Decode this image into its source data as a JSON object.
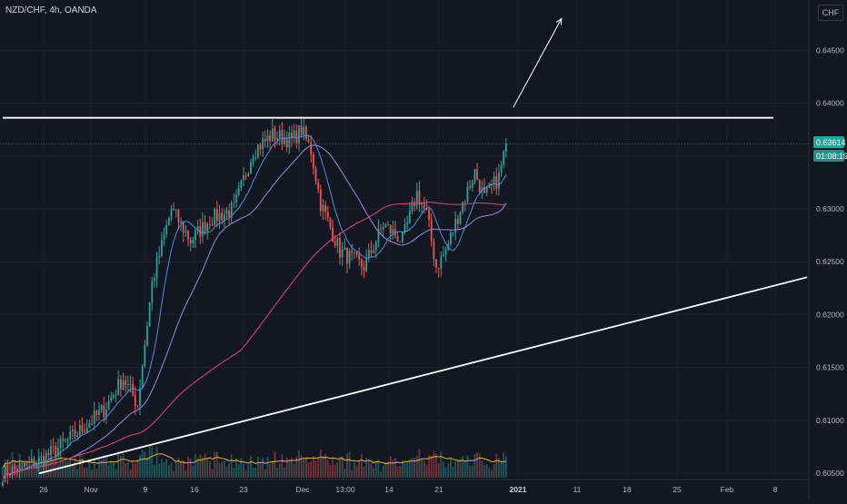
{
  "header": {
    "symbol": "NZD/CHF, 4h, OANDA",
    "currency": "CHF"
  },
  "price_tag": {
    "price": "0.63614",
    "countdown": "01:08:19",
    "color": "#26a69a"
  },
  "chart_data": {
    "type": "candlestick",
    "symbol": "NZD/CHF",
    "timeframe": "4h",
    "source": "OANDA",
    "currency": "CHF",
    "ylim": [
      0.6045,
      0.6515
    ],
    "y_ticks": [
      0.605,
      0.61,
      0.615,
      0.62,
      0.625,
      0.63,
      0.635,
      0.64,
      0.645
    ],
    "x_ticks": [
      "26",
      "Nov",
      "9",
      "16",
      "23",
      "Dec",
      "13:00",
      "14",
      "21",
      "2021",
      "11",
      "18",
      "25",
      "Feb",
      "8"
    ],
    "bar_count": 210,
    "last_price": 0.63614,
    "anchors": [
      [
        0,
        0.605
      ],
      [
        14,
        0.606
      ],
      [
        22,
        0.6072
      ],
      [
        32,
        0.609
      ],
      [
        42,
        0.611
      ],
      [
        50,
        0.614
      ],
      [
        56,
        0.6115
      ],
      [
        62,
        0.623
      ],
      [
        70,
        0.63
      ],
      [
        78,
        0.627
      ],
      [
        86,
        0.629
      ],
      [
        96,
        0.63
      ],
      [
        104,
        0.6355
      ],
      [
        112,
        0.637
      ],
      [
        120,
        0.6365
      ],
      [
        124,
        0.6375
      ],
      [
        128,
        0.6355
      ],
      [
        132,
        0.6305
      ],
      [
        140,
        0.626
      ],
      [
        150,
        0.6245
      ],
      [
        158,
        0.6285
      ],
      [
        166,
        0.627
      ],
      [
        172,
        0.6315
      ],
      [
        176,
        0.6295
      ],
      [
        180,
        0.6245
      ],
      [
        184,
        0.626
      ],
      [
        190,
        0.63
      ],
      [
        196,
        0.6335
      ],
      [
        200,
        0.631
      ],
      [
        206,
        0.633
      ],
      [
        209,
        0.63614
      ]
    ],
    "lines": [
      {
        "name": "resistance",
        "from": [
          0,
          0.63862
        ],
        "to": [
          320,
          0.63862
        ],
        "color": "#ffffff"
      },
      {
        "name": "trendline",
        "from": [
          15,
          0.60497
        ],
        "to": [
          334,
          0.62353
        ],
        "color": "#ffffff"
      },
      {
        "name": "arrow",
        "from": [
          212,
          0.6396
        ],
        "to": [
          232,
          0.648
        ],
        "color": "#ffffff"
      }
    ],
    "moving_averages": [
      {
        "name": "ma-fast",
        "period": 10,
        "color": "#4a90d9"
      },
      {
        "name": "ma-mid",
        "period": 30,
        "color": "#9c8ad6"
      },
      {
        "name": "ma-slow",
        "period": 100,
        "color": "#e0457b"
      }
    ],
    "colors": {
      "up": "#26a69a",
      "down": "#ef5350",
      "volume_ma": "#e6b422"
    }
  }
}
